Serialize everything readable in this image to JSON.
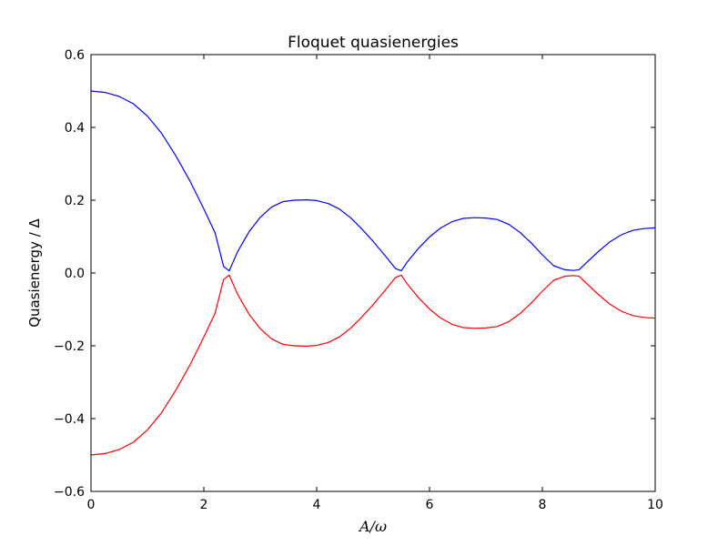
{
  "chart_data": {
    "type": "line",
    "title": "Floquet quasienergies",
    "xlabel": "A/ω",
    "ylabel": "Quasienergy / Δ",
    "xlim": [
      0,
      10
    ],
    "ylim": [
      -0.6,
      0.6
    ],
    "x_ticks": [
      0,
      2,
      4,
      6,
      8,
      10
    ],
    "y_ticks": [
      -0.6,
      -0.4,
      -0.2,
      0.0,
      0.2,
      0.4,
      0.6
    ],
    "x_tick_labels": [
      "0",
      "2",
      "4",
      "6",
      "8",
      "10"
    ],
    "y_tick_labels": [
      "−0.6",
      "−0.4",
      "−0.2",
      "0.0",
      "0.2",
      "0.4",
      "0.6"
    ],
    "grid": false,
    "series": [
      {
        "color": "#0000ff",
        "x": [
          0,
          0.25,
          0.5,
          0.75,
          1.0,
          1.25,
          1.5,
          1.75,
          2.0,
          2.2,
          2.35,
          2.45,
          2.6,
          2.8,
          3.0,
          3.2,
          3.4,
          3.6,
          3.83,
          4.0,
          4.2,
          4.4,
          4.6,
          4.8,
          5.0,
          5.2,
          5.4,
          5.5,
          5.6,
          5.8,
          6.0,
          6.2,
          6.4,
          6.6,
          6.8,
          7.0,
          7.2,
          7.4,
          7.6,
          7.8,
          8.0,
          8.2,
          8.4,
          8.55,
          8.65,
          8.8,
          9.0,
          9.2,
          9.4,
          9.6,
          9.8,
          10.0
        ],
        "y": [
          0.5,
          0.496,
          0.485,
          0.465,
          0.431,
          0.384,
          0.323,
          0.254,
          0.176,
          0.11,
          0.018,
          0.006,
          0.059,
          0.113,
          0.153,
          0.181,
          0.196,
          0.2,
          0.201,
          0.199,
          0.191,
          0.176,
          0.152,
          0.121,
          0.087,
          0.05,
          0.012,
          0.006,
          0.029,
          0.067,
          0.099,
          0.124,
          0.141,
          0.15,
          0.152,
          0.151,
          0.147,
          0.134,
          0.112,
          0.083,
          0.05,
          0.02,
          0.009,
          0.007,
          0.009,
          0.031,
          0.06,
          0.086,
          0.105,
          0.117,
          0.122,
          0.124
        ]
      },
      {
        "color": "#ff0000",
        "x": [
          0,
          0.25,
          0.5,
          0.75,
          1.0,
          1.25,
          1.5,
          1.75,
          2.0,
          2.2,
          2.35,
          2.45,
          2.6,
          2.8,
          3.0,
          3.2,
          3.4,
          3.6,
          3.83,
          4.0,
          4.2,
          4.4,
          4.6,
          4.8,
          5.0,
          5.2,
          5.4,
          5.5,
          5.6,
          5.8,
          6.0,
          6.2,
          6.4,
          6.6,
          6.8,
          7.0,
          7.2,
          7.4,
          7.6,
          7.8,
          8.0,
          8.2,
          8.4,
          8.55,
          8.65,
          8.8,
          9.0,
          9.2,
          9.4,
          9.6,
          9.8,
          10.0
        ],
        "y": [
          -0.5,
          -0.496,
          -0.485,
          -0.465,
          -0.431,
          -0.384,
          -0.323,
          -0.254,
          -0.176,
          -0.11,
          -0.018,
          -0.006,
          -0.059,
          -0.113,
          -0.153,
          -0.181,
          -0.196,
          -0.2,
          -0.201,
          -0.199,
          -0.191,
          -0.176,
          -0.152,
          -0.121,
          -0.087,
          -0.05,
          -0.012,
          -0.006,
          -0.029,
          -0.067,
          -0.099,
          -0.124,
          -0.141,
          -0.15,
          -0.152,
          -0.151,
          -0.147,
          -0.134,
          -0.112,
          -0.083,
          -0.05,
          -0.02,
          -0.009,
          -0.007,
          -0.009,
          -0.031,
          -0.06,
          -0.086,
          -0.105,
          -0.117,
          -0.122,
          -0.124
        ]
      }
    ]
  }
}
